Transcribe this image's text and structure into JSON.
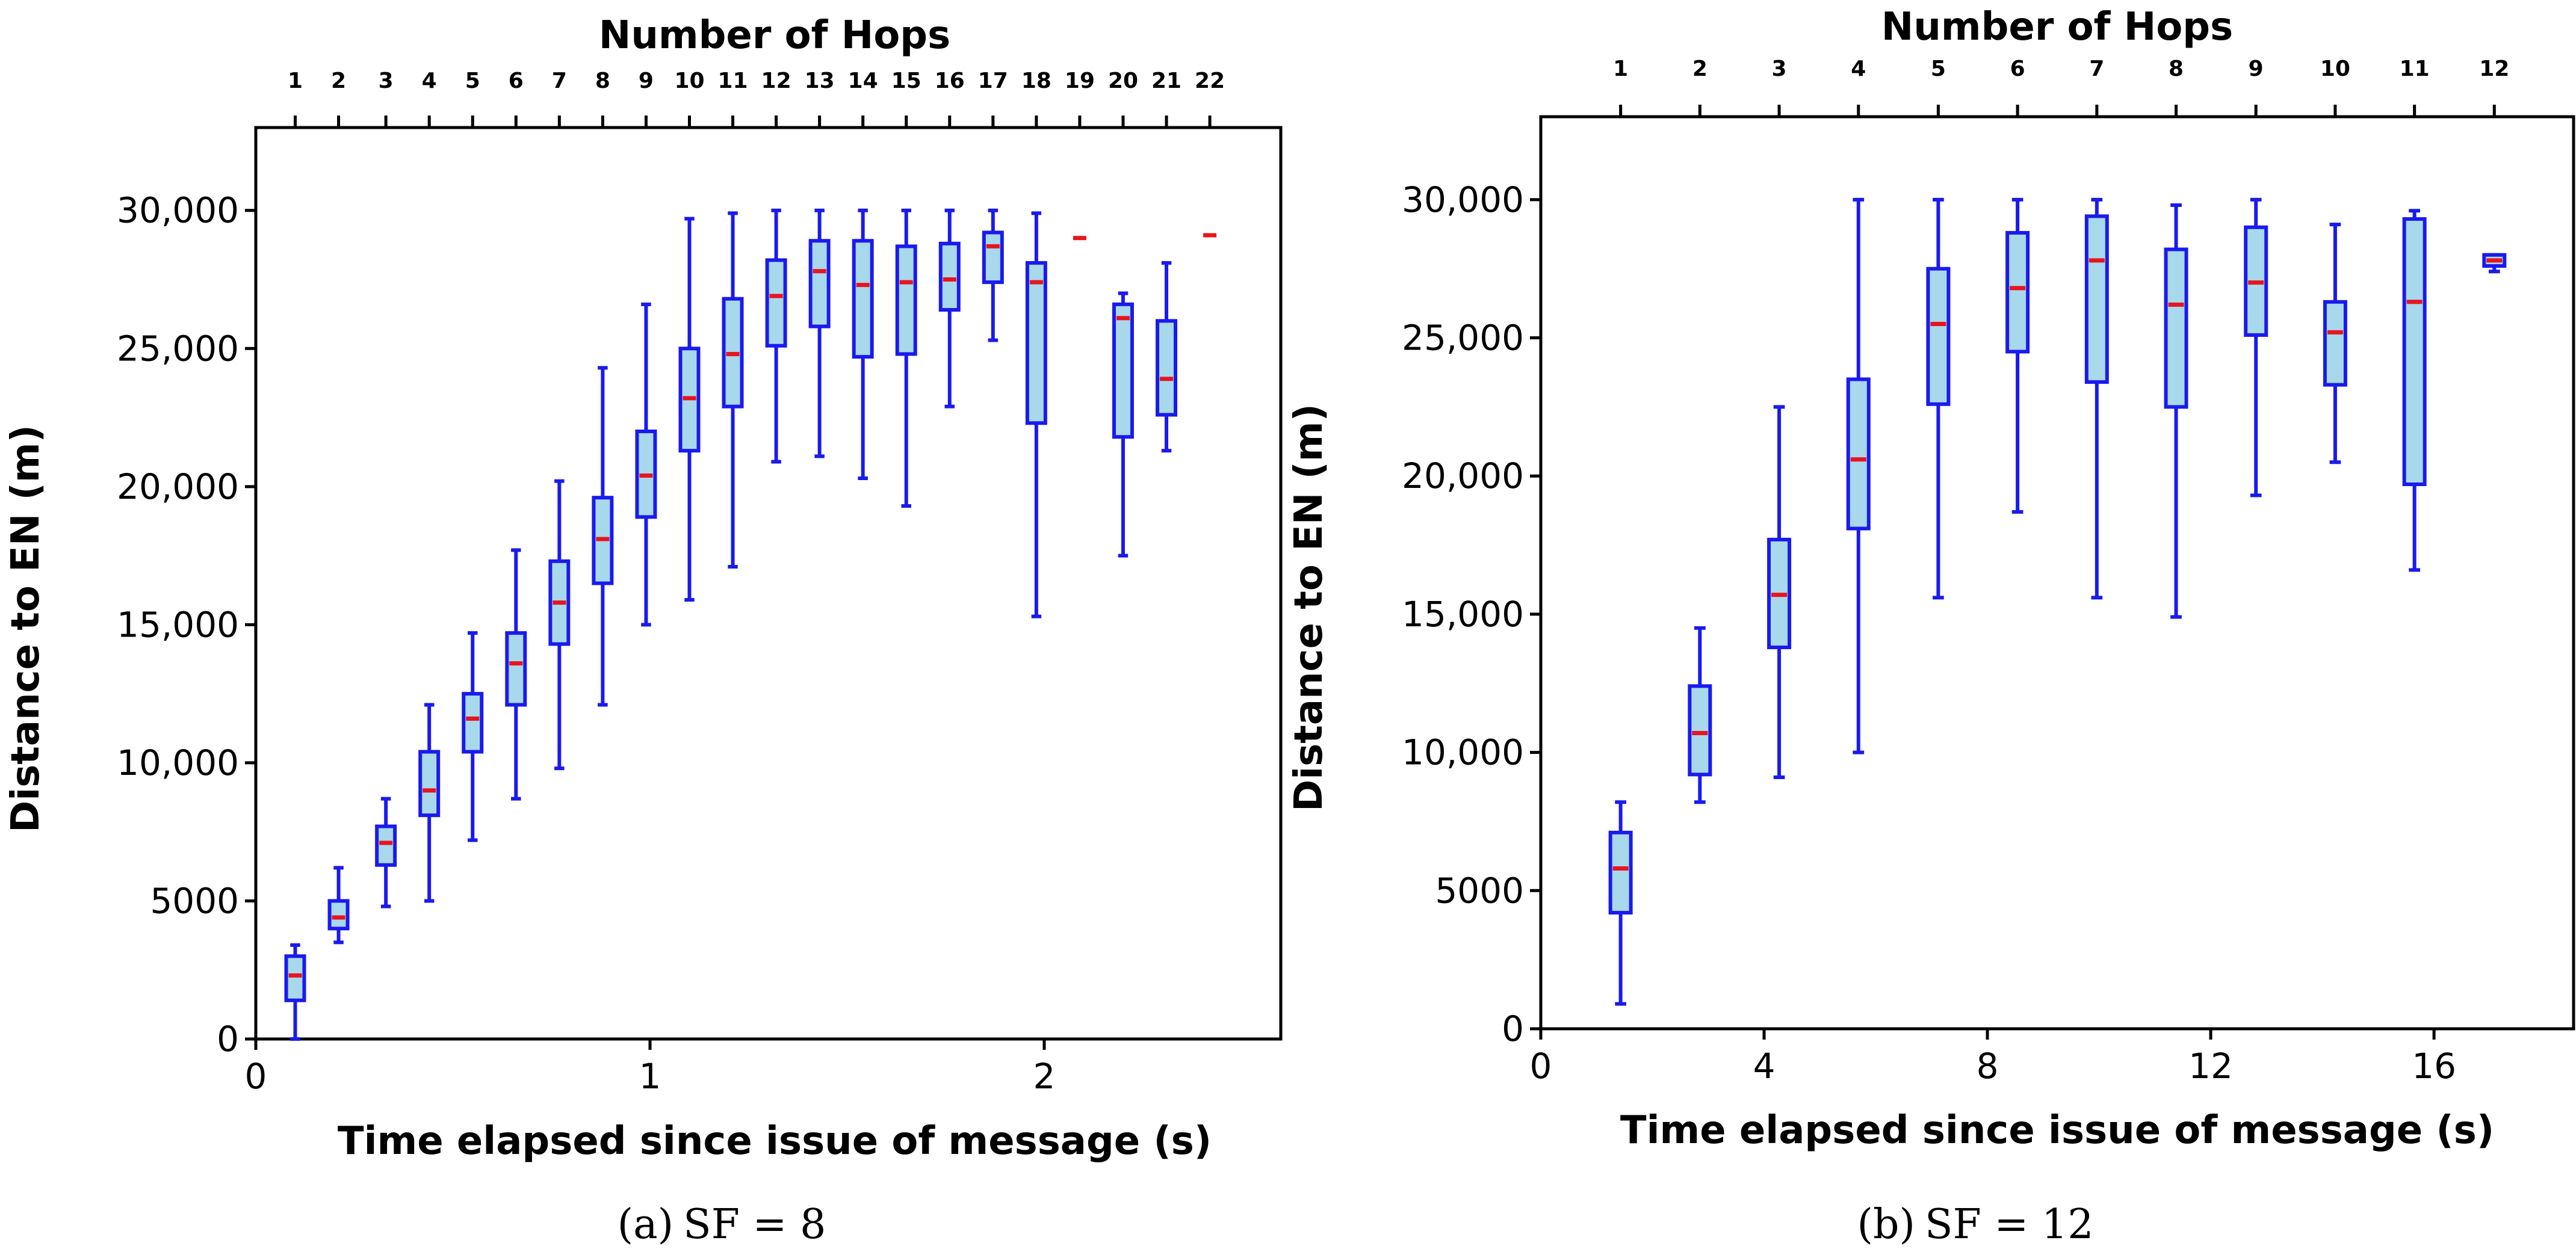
{
  "chart_data": [
    {
      "type": "box",
      "panel": "a",
      "caption_label": "(a)",
      "caption_text": "SF = 8",
      "title": "Number of Hops",
      "xlabel": "Time elapsed since issue of message (s)",
      "ylabel": "Distance to EN (m)",
      "xlim": [
        0,
        2.6
      ],
      "ylim": [
        0,
        33000
      ],
      "xticks": [
        0,
        1,
        2
      ],
      "xtick_labels": [
        "0",
        "1",
        "2"
      ],
      "yticks": [
        0,
        5000,
        10000,
        15000,
        20000,
        25000,
        30000
      ],
      "ytick_labels": [
        "0",
        "5000",
        "10,000",
        "15,000",
        "20,000",
        "25,000",
        "30,000"
      ],
      "colors": {
        "box_edge": "#1a1aee",
        "box_fill": "#a8d8ec",
        "median": "#e8141e",
        "axis": "#000000"
      },
      "boxes": [
        {
          "hop": "1",
          "x": 0.1,
          "whislo": 0,
          "q1": 1400,
          "med": 2300,
          "q3": 3000,
          "whishi": 3400
        },
        {
          "hop": "2",
          "x": 0.21,
          "whislo": 3500,
          "q1": 4000,
          "med": 4400,
          "q3": 5000,
          "whishi": 6200
        },
        {
          "hop": "3",
          "x": 0.33,
          "whislo": 4800,
          "q1": 6300,
          "med": 7100,
          "q3": 7700,
          "whishi": 8700
        },
        {
          "hop": "4",
          "x": 0.44,
          "whislo": 5000,
          "q1": 8100,
          "med": 9000,
          "q3": 10400,
          "whishi": 12100
        },
        {
          "hop": "5",
          "x": 0.55,
          "whislo": 7200,
          "q1": 10400,
          "med": 11600,
          "q3": 12500,
          "whishi": 14700
        },
        {
          "hop": "6",
          "x": 0.66,
          "whislo": 8700,
          "q1": 12100,
          "med": 13600,
          "q3": 14700,
          "whishi": 17700
        },
        {
          "hop": "7",
          "x": 0.77,
          "whislo": 9800,
          "q1": 14300,
          "med": 15800,
          "q3": 17300,
          "whishi": 20200
        },
        {
          "hop": "8",
          "x": 0.88,
          "whislo": 12100,
          "q1": 16500,
          "med": 18100,
          "q3": 19600,
          "whishi": 24300
        },
        {
          "hop": "9",
          "x": 0.99,
          "whislo": 15000,
          "q1": 18900,
          "med": 20400,
          "q3": 22000,
          "whishi": 26600
        },
        {
          "hop": "10",
          "x": 1.1,
          "whislo": 15900,
          "q1": 21300,
          "med": 23200,
          "q3": 25000,
          "whishi": 29700
        },
        {
          "hop": "11",
          "x": 1.21,
          "whislo": 17100,
          "q1": 22900,
          "med": 24800,
          "q3": 26800,
          "whishi": 29900
        },
        {
          "hop": "12",
          "x": 1.32,
          "whislo": 20900,
          "q1": 25100,
          "med": 26900,
          "q3": 28200,
          "whishi": 30000
        },
        {
          "hop": "13",
          "x": 1.43,
          "whislo": 21100,
          "q1": 25800,
          "med": 27800,
          "q3": 28900,
          "whishi": 30000
        },
        {
          "hop": "14",
          "x": 1.54,
          "whislo": 20300,
          "q1": 24700,
          "med": 27300,
          "q3": 28900,
          "whishi": 30000
        },
        {
          "hop": "15",
          "x": 1.65,
          "whislo": 19300,
          "q1": 24800,
          "med": 27400,
          "q3": 28700,
          "whishi": 30000
        },
        {
          "hop": "16",
          "x": 1.76,
          "whislo": 22900,
          "q1": 26400,
          "med": 27500,
          "q3": 28800,
          "whishi": 30000
        },
        {
          "hop": "17",
          "x": 1.87,
          "whislo": 25300,
          "q1": 27400,
          "med": 28700,
          "q3": 29200,
          "whishi": 30000
        },
        {
          "hop": "18",
          "x": 1.98,
          "whislo": 15300,
          "q1": 22300,
          "med": 27400,
          "q3": 28100,
          "whishi": 29900
        },
        {
          "hop": "19",
          "x": 2.09,
          "whislo": 29000,
          "q1": 29000,
          "med": 29000,
          "q3": 29000,
          "whishi": 29000
        },
        {
          "hop": "20",
          "x": 2.2,
          "whislo": 17500,
          "q1": 21800,
          "med": 26100,
          "q3": 26600,
          "whishi": 27000
        },
        {
          "hop": "21",
          "x": 2.31,
          "whislo": 21300,
          "q1": 22600,
          "med": 23900,
          "q3": 26000,
          "whishi": 28100
        },
        {
          "hop": "22",
          "x": 2.42,
          "whislo": 29100,
          "q1": 29100,
          "med": 29100,
          "q3": 29100,
          "whishi": 29100
        }
      ]
    },
    {
      "type": "box",
      "panel": "b",
      "caption_label": "(b)",
      "caption_text": "SF = 12",
      "title": "Number of Hops",
      "xlabel": "Time elapsed since issue of message (s)",
      "ylabel": "Distance to EN (m)",
      "xlim": [
        0,
        18.5
      ],
      "ylim": [
        0,
        33000
      ],
      "xticks": [
        0,
        4,
        8,
        12,
        16
      ],
      "xtick_labels": [
        "0",
        "4",
        "8",
        "12",
        "16"
      ],
      "yticks": [
        0,
        5000,
        10000,
        15000,
        20000,
        25000,
        30000
      ],
      "ytick_labels": [
        "0",
        "5000",
        "10,000",
        "15,000",
        "20,000",
        "25,000",
        "30,000"
      ],
      "colors": {
        "box_edge": "#1a1aee",
        "box_fill": "#a8d8ec",
        "median": "#e8141e",
        "axis": "#000000"
      },
      "boxes": [
        {
          "hop": "1",
          "x": 1.43,
          "whislo": 900,
          "q1": 4200,
          "med": 5800,
          "q3": 7100,
          "whishi": 8200
        },
        {
          "hop": "2",
          "x": 2.85,
          "whislo": 8200,
          "q1": 9200,
          "med": 10700,
          "q3": 12400,
          "whishi": 14500
        },
        {
          "hop": "3",
          "x": 4.27,
          "whislo": 9100,
          "q1": 13800,
          "med": 15700,
          "q3": 17700,
          "whishi": 22500
        },
        {
          "hop": "4",
          "x": 5.69,
          "whislo": 10000,
          "q1": 18100,
          "med": 20600,
          "q3": 23500,
          "whishi": 30000
        },
        {
          "hop": "5",
          "x": 7.12,
          "whislo": 15600,
          "q1": 22600,
          "med": 25500,
          "q3": 27500,
          "whishi": 30000
        },
        {
          "hop": "6",
          "x": 8.54,
          "whislo": 18700,
          "q1": 24500,
          "med": 26800,
          "q3": 28800,
          "whishi": 30000
        },
        {
          "hop": "7",
          "x": 9.96,
          "whislo": 15600,
          "q1": 23400,
          "med": 27800,
          "q3": 29400,
          "whishi": 30000
        },
        {
          "hop": "8",
          "x": 11.38,
          "whislo": 14900,
          "q1": 22500,
          "med": 26200,
          "q3": 28200,
          "whishi": 29800
        },
        {
          "hop": "9",
          "x": 12.81,
          "whislo": 19300,
          "q1": 25100,
          "med": 27000,
          "q3": 29000,
          "whishi": 30000
        },
        {
          "hop": "10",
          "x": 14.23,
          "whislo": 20500,
          "q1": 23300,
          "med": 25200,
          "q3": 26300,
          "whishi": 29100
        },
        {
          "hop": "11",
          "x": 15.65,
          "whislo": 16600,
          "q1": 19700,
          "med": 26300,
          "q3": 29300,
          "whishi": 29600
        },
        {
          "hop": "12",
          "x": 17.08,
          "whislo": 27400,
          "q1": 27600,
          "med": 27800,
          "q3": 28000,
          "whishi": 28000
        }
      ]
    }
  ]
}
